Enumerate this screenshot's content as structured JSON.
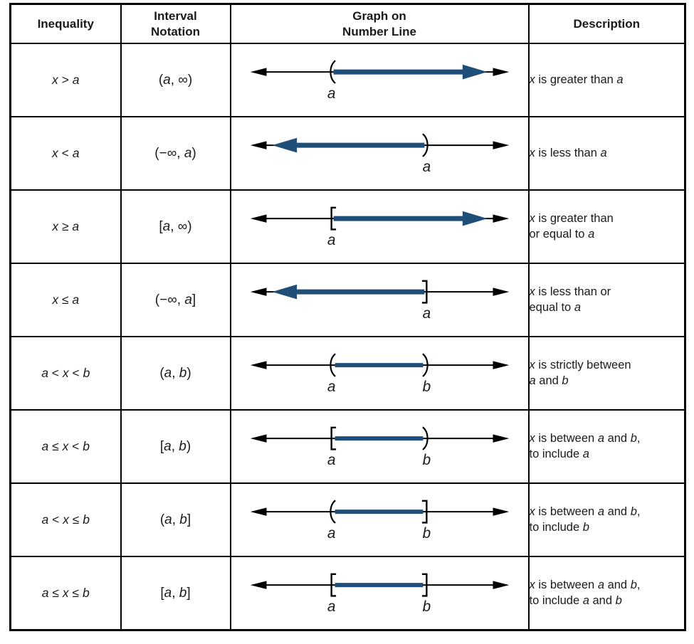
{
  "colors": {
    "highlight_blue": "#1f4e79",
    "line_black": "#000000",
    "border_black": "#000000",
    "background": "#ffffff"
  },
  "table": {
    "headers": {
      "inequality": "Inequality",
      "interval": "Interval\nNotation",
      "graph": "Graph on\nNumber Line",
      "description": "Description"
    },
    "rows": [
      {
        "inequality": "x > a",
        "interval": "(a, ∞)",
        "description": "x is greater than a",
        "graph": {
          "markers": [
            {
              "glyph": "(",
              "pos": "left"
            }
          ],
          "labels": [
            {
              "text": "a",
              "pos": "left"
            }
          ],
          "highlight": "right"
        }
      },
      {
        "inequality": "x < a",
        "interval": "(−∞, a)",
        "description": "x is less than a",
        "graph": {
          "markers": [
            {
              "glyph": ")",
              "pos": "right"
            }
          ],
          "labels": [
            {
              "text": "a",
              "pos": "right"
            }
          ],
          "highlight": "left"
        }
      },
      {
        "inequality": "x ≥ a",
        "interval": "[a, ∞)",
        "description": "x is greater than\nor equal to a",
        "graph": {
          "markers": [
            {
              "glyph": "[",
              "pos": "left"
            }
          ],
          "labels": [
            {
              "text": "a",
              "pos": "left"
            }
          ],
          "highlight": "right"
        }
      },
      {
        "inequality": "x ≤ a",
        "interval": "(−∞, a]",
        "description": "x is less than or\nequal to a",
        "graph": {
          "markers": [
            {
              "glyph": "]",
              "pos": "right"
            }
          ],
          "labels": [
            {
              "text": "a",
              "pos": "right"
            }
          ],
          "highlight": "left"
        }
      },
      {
        "inequality": "a < x < b",
        "interval": "(a, b)",
        "description": "x is strictly between\na and b",
        "graph": {
          "markers": [
            {
              "glyph": "(",
              "pos": "left"
            },
            {
              "glyph": ")",
              "pos": "right"
            }
          ],
          "labels": [
            {
              "text": "a",
              "pos": "left"
            },
            {
              "text": "b",
              "pos": "right"
            }
          ],
          "highlight": "between"
        }
      },
      {
        "inequality": "a ≤ x < b",
        "interval": "[a, b)",
        "description": "x is between a and b,\nto include a",
        "graph": {
          "markers": [
            {
              "glyph": "[",
              "pos": "left"
            },
            {
              "glyph": ")",
              "pos": "right"
            }
          ],
          "labels": [
            {
              "text": "a",
              "pos": "left"
            },
            {
              "text": "b",
              "pos": "right"
            }
          ],
          "highlight": "between"
        }
      },
      {
        "inequality": "a < x ≤ b",
        "interval": "(a, b]",
        "description": "x is between a and b,\nto include b",
        "graph": {
          "markers": [
            {
              "glyph": "(",
              "pos": "left"
            },
            {
              "glyph": "]",
              "pos": "right"
            }
          ],
          "labels": [
            {
              "text": "a",
              "pos": "left"
            },
            {
              "text": "b",
              "pos": "right"
            }
          ],
          "highlight": "between"
        }
      },
      {
        "inequality": "a ≤ x ≤ b",
        "interval": "[a, b]",
        "description": "x is between a and b,\nto include a and b",
        "graph": {
          "markers": [
            {
              "glyph": "[",
              "pos": "left"
            },
            {
              "glyph": "]",
              "pos": "right"
            }
          ],
          "labels": [
            {
              "text": "a",
              "pos": "left"
            },
            {
              "text": "b",
              "pos": "right"
            }
          ],
          "highlight": "between"
        }
      }
    ]
  }
}
